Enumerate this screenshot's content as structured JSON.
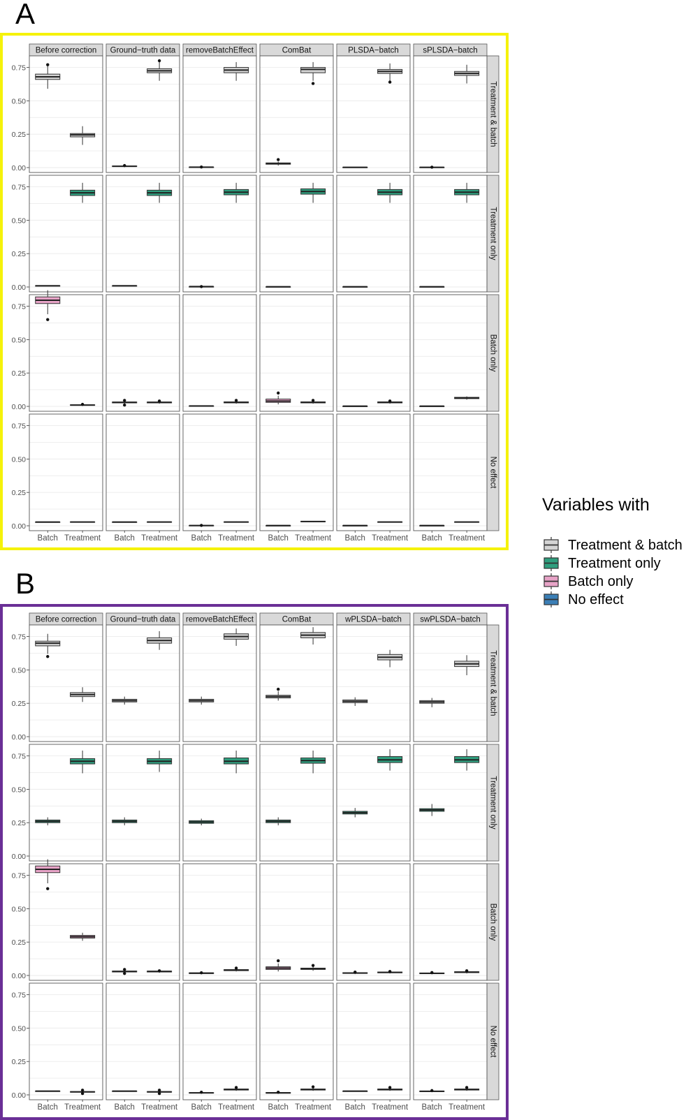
{
  "figure_labels": [
    "A",
    "B"
  ],
  "legend": {
    "title": "Variables with",
    "items": [
      {
        "label": "Treatment & batch",
        "key": "tb"
      },
      {
        "label": "Treatment only",
        "key": "to"
      },
      {
        "label": "Batch only",
        "key": "bo"
      },
      {
        "label": "No effect",
        "key": "ne"
      }
    ]
  },
  "colors": {
    "tb": "#d3d3d3",
    "to": "#2f9e7e",
    "bo": "#e7a3c7",
    "ne": "#3b7fb6",
    "frame_A": "#f5f20a",
    "frame_B": "#6a2f96",
    "strip": "#d9d9d9",
    "grid": "#ebebeb"
  },
  "chart_data": [
    {
      "panel": "A",
      "type": "box",
      "ylim": [
        0,
        0.8
      ],
      "yticks": [
        "0.00",
        "0.25",
        "0.50",
        "0.75"
      ],
      "y_tick_values": [
        0,
        0.25,
        0.5,
        0.75
      ],
      "x_categories": [
        "Batch",
        "Treatment"
      ],
      "columns": [
        "Before correction",
        "Ground−truth data",
        "removeBatchEffect",
        "ComBat",
        "PLSDA−batch",
        "sPLSDA−batch"
      ],
      "rows": [
        {
          "label": "Treatment & batch",
          "key": "tb"
        },
        {
          "label": "Treatment only",
          "key": "to"
        },
        {
          "label": "Batch only",
          "key": "bo"
        },
        {
          "label": "No effect",
          "key": "ne"
        }
      ],
      "boxes": [
        [
          [
            [
              0.59,
              0.66,
              0.68,
              0.7,
              0.76,
              [
                0.77
              ]
            ],
            [
              0.17,
              0.23,
              0.245,
              0.255,
              0.31,
              []
            ]
          ],
          [
            [
              0.01,
              0.01,
              0.01,
              0.012,
              0.015,
              [
                0.015
              ]
            ],
            [
              0.65,
              0.71,
              0.725,
              0.74,
              0.79,
              [
                0.8
              ]
            ]
          ],
          [
            [
              0.003,
              0.003,
              0.003,
              0.004,
              0.005,
              [
                0.004
              ]
            ],
            [
              0.65,
              0.71,
              0.73,
              0.75,
              0.79,
              []
            ]
          ],
          [
            [
              0.015,
              0.025,
              0.03,
              0.035,
              0.045,
              [
                0.06
              ]
            ],
            [
              0.65,
              0.71,
              0.735,
              0.75,
              0.79,
              [
                0.63
              ]
            ]
          ],
          [
            [
              0.002,
              0.002,
              0.002,
              0.003,
              0.003,
              []
            ],
            [
              0.65,
              0.705,
              0.72,
              0.735,
              0.78,
              [
                0.64
              ]
            ]
          ],
          [
            [
              0.002,
              0.002,
              0.002,
              0.003,
              0.003,
              [
                0.003
              ]
            ],
            [
              0.63,
              0.69,
              0.705,
              0.72,
              0.77,
              []
            ]
          ]
        ],
        [
          [
            [
              0.008,
              0.008,
              0.009,
              0.01,
              0.012,
              []
            ],
            [
              0.63,
              0.685,
              0.705,
              0.725,
              0.78,
              []
            ]
          ],
          [
            [
              0.007,
              0.008,
              0.009,
              0.01,
              0.012,
              []
            ],
            [
              0.63,
              0.685,
              0.705,
              0.725,
              0.78,
              []
            ]
          ],
          [
            [
              0.002,
              0.002,
              0.003,
              0.003,
              0.004,
              [
                0.003
              ]
            ],
            [
              0.63,
              0.69,
              0.71,
              0.73,
              0.78,
              []
            ]
          ],
          [
            [
              0.001,
              0.001,
              0.002,
              0.002,
              0.003,
              []
            ],
            [
              0.63,
              0.695,
              0.715,
              0.735,
              0.78,
              []
            ]
          ],
          [
            [
              0.001,
              0.001,
              0.002,
              0.002,
              0.003,
              []
            ],
            [
              0.63,
              0.69,
              0.71,
              0.73,
              0.78,
              []
            ]
          ],
          [
            [
              0.001,
              0.001,
              0.002,
              0.002,
              0.003,
              []
            ],
            [
              0.63,
              0.69,
              0.71,
              0.73,
              0.78,
              []
            ]
          ]
        ],
        [
          [
            [
              0.69,
              0.77,
              0.795,
              0.82,
              0.87,
              [
                0.65
              ]
            ],
            [
              0.005,
              0.008,
              0.01,
              0.012,
              0.015,
              [
                0.015
              ]
            ]
          ],
          [
            [
              0.02,
              0.026,
              0.03,
              0.033,
              0.04,
              [
                0.045,
                0.01
              ]
            ],
            [
              0.02,
              0.026,
              0.03,
              0.033,
              0.04,
              [
                0.04
              ]
            ]
          ],
          [
            [
              0.001,
              0.002,
              0.003,
              0.004,
              0.005,
              []
            ],
            [
              0.02,
              0.026,
              0.03,
              0.034,
              0.04,
              [
                0.045
              ]
            ]
          ],
          [
            [
              0.015,
              0.03,
              0.04,
              0.055,
              0.08,
              [
                0.1
              ]
            ],
            [
              0.02,
              0.026,
              0.03,
              0.034,
              0.04,
              [
                0.045
              ]
            ]
          ],
          [
            [
              0.001,
              0.001,
              0.002,
              0.002,
              0.003,
              []
            ],
            [
              0.02,
              0.026,
              0.03,
              0.034,
              0.04,
              [
                0.04
              ]
            ]
          ],
          [
            [
              0.001,
              0.001,
              0.002,
              0.002,
              0.003,
              []
            ],
            [
              0.05,
              0.058,
              0.063,
              0.068,
              0.075,
              []
            ]
          ]
        ],
        [
          [
            [
              0.026,
              0.027,
              0.028,
              0.029,
              0.03,
              []
            ],
            [
              0.025,
              0.027,
              0.028,
              0.03,
              0.032,
              []
            ]
          ],
          [
            [
              0.026,
              0.027,
              0.028,
              0.029,
              0.03,
              []
            ],
            [
              0.025,
              0.027,
              0.028,
              0.03,
              0.032,
              []
            ]
          ],
          [
            [
              0.001,
              0.001,
              0.002,
              0.003,
              0.004,
              [
                0.003
              ]
            ],
            [
              0.025,
              0.027,
              0.028,
              0.03,
              0.033,
              []
            ]
          ],
          [
            [
              0.001,
              0.001,
              0.002,
              0.002,
              0.003,
              []
            ],
            [
              0.028,
              0.03,
              0.032,
              0.034,
              0.036,
              []
            ]
          ],
          [
            [
              0.001,
              0.001,
              0.002,
              0.002,
              0.003,
              []
            ],
            [
              0.025,
              0.027,
              0.028,
              0.03,
              0.032,
              []
            ]
          ],
          [
            [
              0.001,
              0.001,
              0.002,
              0.002,
              0.003,
              []
            ],
            [
              0.025,
              0.027,
              0.028,
              0.03,
              0.032,
              []
            ]
          ]
        ]
      ]
    },
    {
      "panel": "B",
      "type": "box",
      "ylim": [
        0,
        0.8
      ],
      "yticks": [
        "0.00",
        "0.25",
        "0.50",
        "0.75"
      ],
      "y_tick_values": [
        0,
        0.25,
        0.5,
        0.75
      ],
      "x_categories": [
        "Batch",
        "Treatment"
      ],
      "columns": [
        "Before correction",
        "Ground−truth data",
        "removeBatchEffect",
        "ComBat",
        "wPLSDA−batch",
        "swPLSDA−batch"
      ],
      "rows": [
        {
          "label": "Treatment & batch",
          "key": "tb"
        },
        {
          "label": "Treatment only",
          "key": "to"
        },
        {
          "label": "Batch only",
          "key": "bo"
        },
        {
          "label": "No effect",
          "key": "ne"
        }
      ],
      "boxes": [
        [
          [
            [
              0.62,
              0.68,
              0.7,
              0.715,
              0.77,
              [
                0.6
              ]
            ],
            [
              0.26,
              0.3,
              0.315,
              0.33,
              0.37,
              []
            ]
          ],
          [
            [
              0.24,
              0.26,
              0.27,
              0.28,
              0.3,
              []
            ],
            [
              0.65,
              0.7,
              0.72,
              0.74,
              0.79,
              []
            ]
          ],
          [
            [
              0.24,
              0.26,
              0.27,
              0.28,
              0.3,
              []
            ],
            [
              0.68,
              0.73,
              0.75,
              0.77,
              0.81,
              []
            ]
          ],
          [
            [
              0.27,
              0.29,
              0.3,
              0.31,
              0.34,
              [
                0.355
              ]
            ],
            [
              0.69,
              0.74,
              0.76,
              0.78,
              0.82,
              []
            ]
          ],
          [
            [
              0.23,
              0.255,
              0.265,
              0.275,
              0.295,
              []
            ],
            [
              0.52,
              0.575,
              0.595,
              0.615,
              0.65,
              []
            ]
          ],
          [
            [
              0.22,
              0.25,
              0.26,
              0.27,
              0.29,
              []
            ],
            [
              0.46,
              0.525,
              0.545,
              0.565,
              0.61,
              []
            ]
          ]
        ],
        [
          [
            [
              0.23,
              0.25,
              0.26,
              0.27,
              0.29,
              []
            ],
            [
              0.62,
              0.69,
              0.71,
              0.73,
              0.79,
              []
            ]
          ],
          [
            [
              0.23,
              0.25,
              0.26,
              0.27,
              0.29,
              []
            ],
            [
              0.63,
              0.69,
              0.71,
              0.73,
              0.79,
              []
            ]
          ],
          [
            [
              0.23,
              0.245,
              0.255,
              0.265,
              0.28,
              []
            ],
            [
              0.62,
              0.69,
              0.71,
              0.735,
              0.79,
              []
            ]
          ],
          [
            [
              0.23,
              0.25,
              0.26,
              0.27,
              0.29,
              []
            ],
            [
              0.62,
              0.695,
              0.715,
              0.735,
              0.79,
              []
            ]
          ],
          [
            [
              0.29,
              0.315,
              0.325,
              0.335,
              0.36,
              []
            ],
            [
              0.64,
              0.7,
              0.72,
              0.745,
              0.8,
              []
            ]
          ],
          [
            [
              0.3,
              0.335,
              0.345,
              0.355,
              0.39,
              []
            ],
            [
              0.64,
              0.7,
              0.72,
              0.745,
              0.8,
              []
            ]
          ]
        ],
        [
          [
            [
              0.69,
              0.77,
              0.795,
              0.82,
              0.87,
              [
                0.65
              ]
            ],
            [
              0.26,
              0.28,
              0.29,
              0.3,
              0.32,
              []
            ]
          ],
          [
            [
              0.02,
              0.026,
              0.03,
              0.033,
              0.04,
              [
                0.045,
                0.015
              ]
            ],
            [
              0.02,
              0.026,
              0.03,
              0.033,
              0.04,
              [
                0.035
              ]
            ]
          ],
          [
            [
              0.01,
              0.014,
              0.017,
              0.02,
              0.024,
              [
                0.02
              ]
            ],
            [
              0.03,
              0.036,
              0.04,
              0.044,
              0.05,
              [
                0.055
              ]
            ]
          ],
          [
            [
              0.03,
              0.045,
              0.055,
              0.065,
              0.09,
              [
                0.11
              ]
            ],
            [
              0.035,
              0.045,
              0.05,
              0.055,
              0.07,
              [
                0.075
              ]
            ]
          ],
          [
            [
              0.01,
              0.015,
              0.018,
              0.021,
              0.025,
              [
                0.025
              ]
            ],
            [
              0.015,
              0.02,
              0.023,
              0.026,
              0.03,
              [
                0.03
              ]
            ]
          ],
          [
            [
              0.008,
              0.013,
              0.016,
              0.019,
              0.024,
              [
                0.022
              ]
            ],
            [
              0.015,
              0.021,
              0.025,
              0.028,
              0.033,
              [
                0.035
              ]
            ]
          ]
        ],
        [
          [
            [
              0.026,
              0.027,
              0.028,
              0.029,
              0.03,
              []
            ],
            [
              0.015,
              0.02,
              0.022,
              0.025,
              0.03,
              [
                0.01,
                0.035
              ]
            ]
          ],
          [
            [
              0.026,
              0.027,
              0.028,
              0.029,
              0.03,
              []
            ],
            [
              0.015,
              0.02,
              0.022,
              0.025,
              0.03,
              [
                0.01,
                0.035
              ]
            ]
          ],
          [
            [
              0.01,
              0.013,
              0.015,
              0.017,
              0.02,
              [
                0.02
              ]
            ],
            [
              0.03,
              0.036,
              0.04,
              0.044,
              0.05,
              [
                0.055
              ]
            ]
          ],
          [
            [
              0.008,
              0.012,
              0.015,
              0.018,
              0.02,
              [
                0.02
              ]
            ],
            [
              0.03,
              0.036,
              0.04,
              0.044,
              0.05,
              [
                0.06
              ]
            ]
          ],
          [
            [
              0.026,
              0.027,
              0.028,
              0.029,
              0.03,
              []
            ],
            [
              0.03,
              0.036,
              0.04,
              0.044,
              0.05,
              [
                0.055
              ]
            ]
          ],
          [
            [
              0.02,
              0.024,
              0.027,
              0.029,
              0.032,
              [
                0.032
              ]
            ],
            [
              0.03,
              0.036,
              0.04,
              0.044,
              0.05,
              [
                0.055
              ]
            ]
          ]
        ]
      ]
    }
  ]
}
